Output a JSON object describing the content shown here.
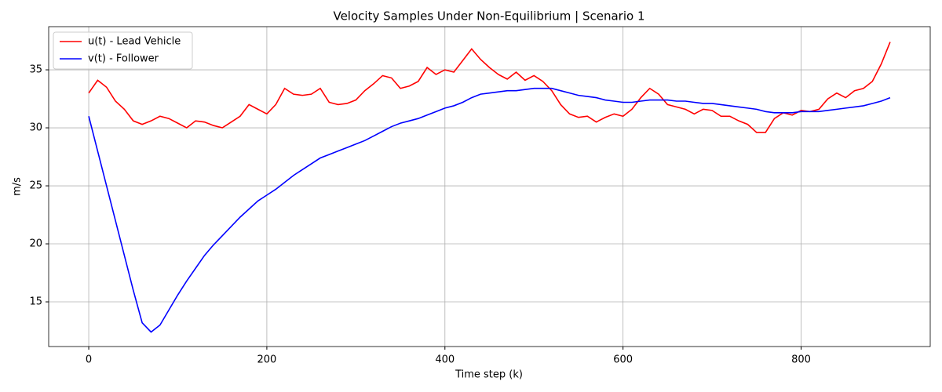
{
  "chart_data": {
    "type": "line",
    "title": "Velocity Samples Under Non-Equilibrium | Scenario 1",
    "x_label": "Time step (k)",
    "y_label": "m/s",
    "x": [
      0,
      10,
      20,
      30,
      40,
      50,
      60,
      70,
      80,
      90,
      100,
      110,
      120,
      130,
      140,
      150,
      160,
      170,
      180,
      190,
      200,
      210,
      220,
      230,
      240,
      250,
      260,
      270,
      280,
      290,
      300,
      310,
      320,
      330,
      340,
      350,
      360,
      370,
      380,
      390,
      400,
      410,
      420,
      430,
      440,
      450,
      460,
      470,
      480,
      490,
      500,
      510,
      520,
      530,
      540,
      550,
      560,
      570,
      580,
      590,
      600,
      610,
      620,
      630,
      640,
      650,
      660,
      670,
      680,
      690,
      700,
      710,
      720,
      730,
      740,
      750,
      760,
      770,
      780,
      790,
      800,
      810,
      820,
      830,
      840,
      850,
      860,
      870,
      880,
      890,
      900
    ],
    "series": [
      {
        "name": "u(t) - Lead Vehicle",
        "color": "#ff0000",
        "values": [
          33.0,
          34.1,
          33.5,
          32.3,
          31.6,
          30.6,
          30.3,
          30.6,
          31.0,
          30.8,
          30.4,
          30.0,
          30.6,
          30.5,
          30.2,
          30.0,
          30.5,
          31.0,
          32.0,
          31.6,
          31.2,
          32.0,
          33.4,
          32.9,
          32.8,
          32.9,
          33.4,
          32.2,
          32.0,
          32.1,
          32.4,
          33.2,
          33.8,
          34.5,
          34.3,
          33.4,
          33.6,
          34.0,
          35.2,
          34.6,
          35.0,
          34.8,
          35.8,
          36.8,
          35.9,
          35.2,
          34.6,
          34.2,
          34.8,
          34.1,
          34.5,
          34.0,
          33.2,
          32.0,
          31.2,
          30.9,
          31.0,
          30.5,
          30.9,
          31.2,
          31.0,
          31.6,
          32.6,
          33.4,
          32.9,
          32.0,
          31.8,
          31.6,
          31.2,
          31.6,
          31.5,
          31.0,
          31.0,
          30.6,
          30.3,
          29.6,
          29.6,
          30.8,
          31.3,
          31.1,
          31.5,
          31.4,
          31.6,
          32.5,
          33.0,
          32.6,
          33.2,
          33.4,
          34.0,
          35.5,
          37.4
        ]
      },
      {
        "name": "v(t) - Follower",
        "color": "#0000ff",
        "values": [
          31.0,
          28.0,
          25.0,
          22.0,
          19.0,
          16.0,
          13.2,
          12.4,
          13.0,
          14.3,
          15.6,
          16.8,
          17.9,
          19.0,
          19.9,
          20.7,
          21.5,
          22.3,
          23.0,
          23.7,
          24.2,
          24.7,
          25.3,
          25.9,
          26.4,
          26.9,
          27.4,
          27.7,
          28.0,
          28.3,
          28.6,
          28.9,
          29.3,
          29.7,
          30.1,
          30.4,
          30.6,
          30.8,
          31.1,
          31.4,
          31.7,
          31.9,
          32.2,
          32.6,
          32.9,
          33.0,
          33.1,
          33.2,
          33.2,
          33.3,
          33.4,
          33.4,
          33.4,
          33.2,
          33.0,
          32.8,
          32.7,
          32.6,
          32.4,
          32.3,
          32.2,
          32.2,
          32.3,
          32.4,
          32.4,
          32.4,
          32.3,
          32.3,
          32.2,
          32.1,
          32.1,
          32.0,
          31.9,
          31.8,
          31.7,
          31.6,
          31.4,
          31.3,
          31.3,
          31.3,
          31.4,
          31.4,
          31.4,
          31.5,
          31.6,
          31.7,
          31.8,
          31.9,
          32.1,
          32.3,
          32.6
        ]
      }
    ],
    "xlim": [
      -45,
      945
    ],
    "ylim": [
      11.15,
      38.72
    ],
    "xticks": [
      0,
      200,
      400,
      600,
      800
    ],
    "yticks": [
      15,
      20,
      25,
      30,
      35
    ],
    "grid": true,
    "legend": "upper left"
  }
}
